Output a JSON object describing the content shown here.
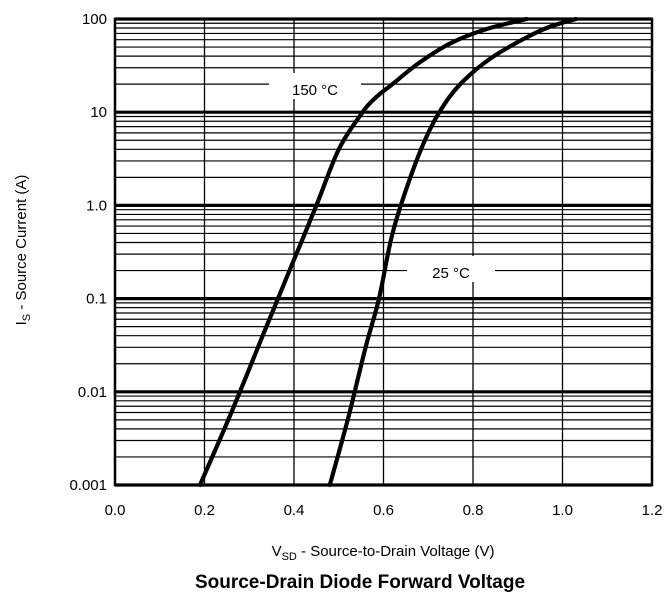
{
  "chart_data": {
    "type": "line",
    "title": "Source-Drain Diode Forward Voltage",
    "xlabel": {
      "main": "V",
      "sub": "SD",
      "rest": " - Source-to-Drain Voltage (V)"
    },
    "ylabel": {
      "main": "I",
      "sub": "S",
      "rest": " - Source Current (A)"
    },
    "xlim": [
      0,
      1.2
    ],
    "ylim": [
      0.001,
      100
    ],
    "yscale": "log",
    "grid": true,
    "x_ticks": [
      {
        "value": 0.0,
        "label": "0.0"
      },
      {
        "value": 0.2,
        "label": "0.2"
      },
      {
        "value": 0.4,
        "label": "0.4"
      },
      {
        "value": 0.6,
        "label": "0.6"
      },
      {
        "value": 0.8,
        "label": "0.8"
      },
      {
        "value": 1.0,
        "label": "1.0"
      },
      {
        "value": 1.2,
        "label": "1.2"
      }
    ],
    "y_ticks": [
      {
        "value": 0.001,
        "label": "0.001"
      },
      {
        "value": 0.01,
        "label": "0.01"
      },
      {
        "value": 0.1,
        "label": "0.1"
      },
      {
        "value": 1.0,
        "label": "1.0"
      },
      {
        "value": 10,
        "label": "10"
      },
      {
        "value": 100,
        "label": "100"
      }
    ],
    "series": [
      {
        "name": "150 °C",
        "x": [
          0.19,
          0.26,
          0.33,
          0.39,
          0.45,
          0.5,
          0.55,
          0.58,
          0.62,
          0.68,
          0.75,
          0.83,
          0.92
        ],
        "y": [
          0.001,
          0.006,
          0.04,
          0.2,
          1.0,
          4.0,
          9.5,
          14,
          20,
          34,
          55,
          78,
          100
        ]
      },
      {
        "name": "25 °C",
        "x": [
          0.48,
          0.52,
          0.56,
          0.59,
          0.62,
          0.66,
          0.7,
          0.74,
          0.78,
          0.84,
          0.91,
          0.97,
          1.03
        ],
        "y": [
          0.001,
          0.005,
          0.03,
          0.1,
          0.5,
          2.0,
          6.0,
          13,
          22,
          38,
          60,
          82,
          100
        ]
      }
    ],
    "annotations": [
      {
        "text": "150 °C",
        "series": 0
      },
      {
        "text": "25 °C",
        "series": 1
      }
    ]
  }
}
